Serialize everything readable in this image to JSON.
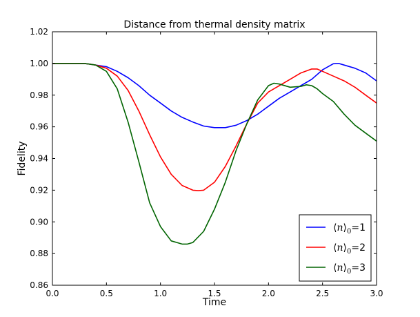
{
  "chart_data": {
    "type": "line",
    "title": "Distance from thermal density matrix",
    "xlabel": "Time",
    "ylabel": "Fidelity",
    "xlim": [
      0.0,
      3.0
    ],
    "ylim": [
      0.86,
      1.02
    ],
    "xticks": [
      "0.0",
      "0.5",
      "1.0",
      "1.5",
      "2.0",
      "2.5",
      "3.0"
    ],
    "yticks": [
      "0.86",
      "0.88",
      "0.90",
      "0.92",
      "0.94",
      "0.96",
      "0.98",
      "1.00",
      "1.02"
    ],
    "grid": false,
    "legend_position": "lower-right",
    "series": [
      {
        "name": "⟨n⟩₀=1",
        "legend_value": "1",
        "color": "#0000ff",
        "x": [
          0.0,
          0.3,
          0.5,
          0.6,
          0.7,
          0.8,
          0.9,
          1.0,
          1.1,
          1.2,
          1.3,
          1.4,
          1.5,
          1.6,
          1.7,
          1.8,
          1.9,
          2.0,
          2.1,
          2.2,
          2.3,
          2.4,
          2.5,
          2.6,
          2.65,
          2.7,
          2.8,
          2.9,
          3.0
        ],
        "y": [
          1.0,
          1.0,
          0.998,
          0.995,
          0.991,
          0.986,
          0.98,
          0.975,
          0.97,
          0.966,
          0.963,
          0.9605,
          0.9595,
          0.9595,
          0.961,
          0.964,
          0.968,
          0.973,
          0.978,
          0.982,
          0.986,
          0.99,
          0.996,
          0.9998,
          1.0,
          0.999,
          0.997,
          0.994,
          0.989
        ]
      },
      {
        "name": "⟨n⟩₀=2",
        "legend_value": "2",
        "color": "#ff0000",
        "x": [
          0.0,
          0.3,
          0.4,
          0.5,
          0.6,
          0.7,
          0.8,
          0.9,
          1.0,
          1.1,
          1.2,
          1.3,
          1.35,
          1.4,
          1.5,
          1.6,
          1.7,
          1.8,
          1.9,
          2.0,
          2.1,
          2.2,
          2.3,
          2.4,
          2.45,
          2.5,
          2.6,
          2.7,
          2.8,
          2.9,
          3.0
        ],
        "y": [
          1.0,
          1.0,
          0.999,
          0.997,
          0.992,
          0.983,
          0.97,
          0.955,
          0.941,
          0.93,
          0.923,
          0.92,
          0.9197,
          0.92,
          0.925,
          0.935,
          0.948,
          0.962,
          0.975,
          0.982,
          0.986,
          0.99,
          0.994,
          0.9965,
          0.9965,
          0.995,
          0.992,
          0.989,
          0.985,
          0.98,
          0.975
        ]
      },
      {
        "name": "⟨n⟩₀=3",
        "legend_value": "3",
        "color": "#006400",
        "x": [
          0.0,
          0.3,
          0.4,
          0.5,
          0.6,
          0.7,
          0.8,
          0.9,
          1.0,
          1.1,
          1.2,
          1.25,
          1.3,
          1.4,
          1.5,
          1.6,
          1.7,
          1.8,
          1.9,
          2.0,
          2.05,
          2.1,
          2.2,
          2.3,
          2.35,
          2.4,
          2.45,
          2.5,
          2.6,
          2.7,
          2.8,
          2.9,
          3.0
        ],
        "y": [
          1.0,
          1.0,
          0.999,
          0.995,
          0.984,
          0.963,
          0.938,
          0.912,
          0.897,
          0.888,
          0.886,
          0.886,
          0.887,
          0.894,
          0.908,
          0.925,
          0.945,
          0.962,
          0.977,
          0.986,
          0.9875,
          0.987,
          0.985,
          0.9855,
          0.9865,
          0.986,
          0.984,
          0.981,
          0.976,
          0.968,
          0.961,
          0.956,
          0.951
        ]
      }
    ]
  }
}
